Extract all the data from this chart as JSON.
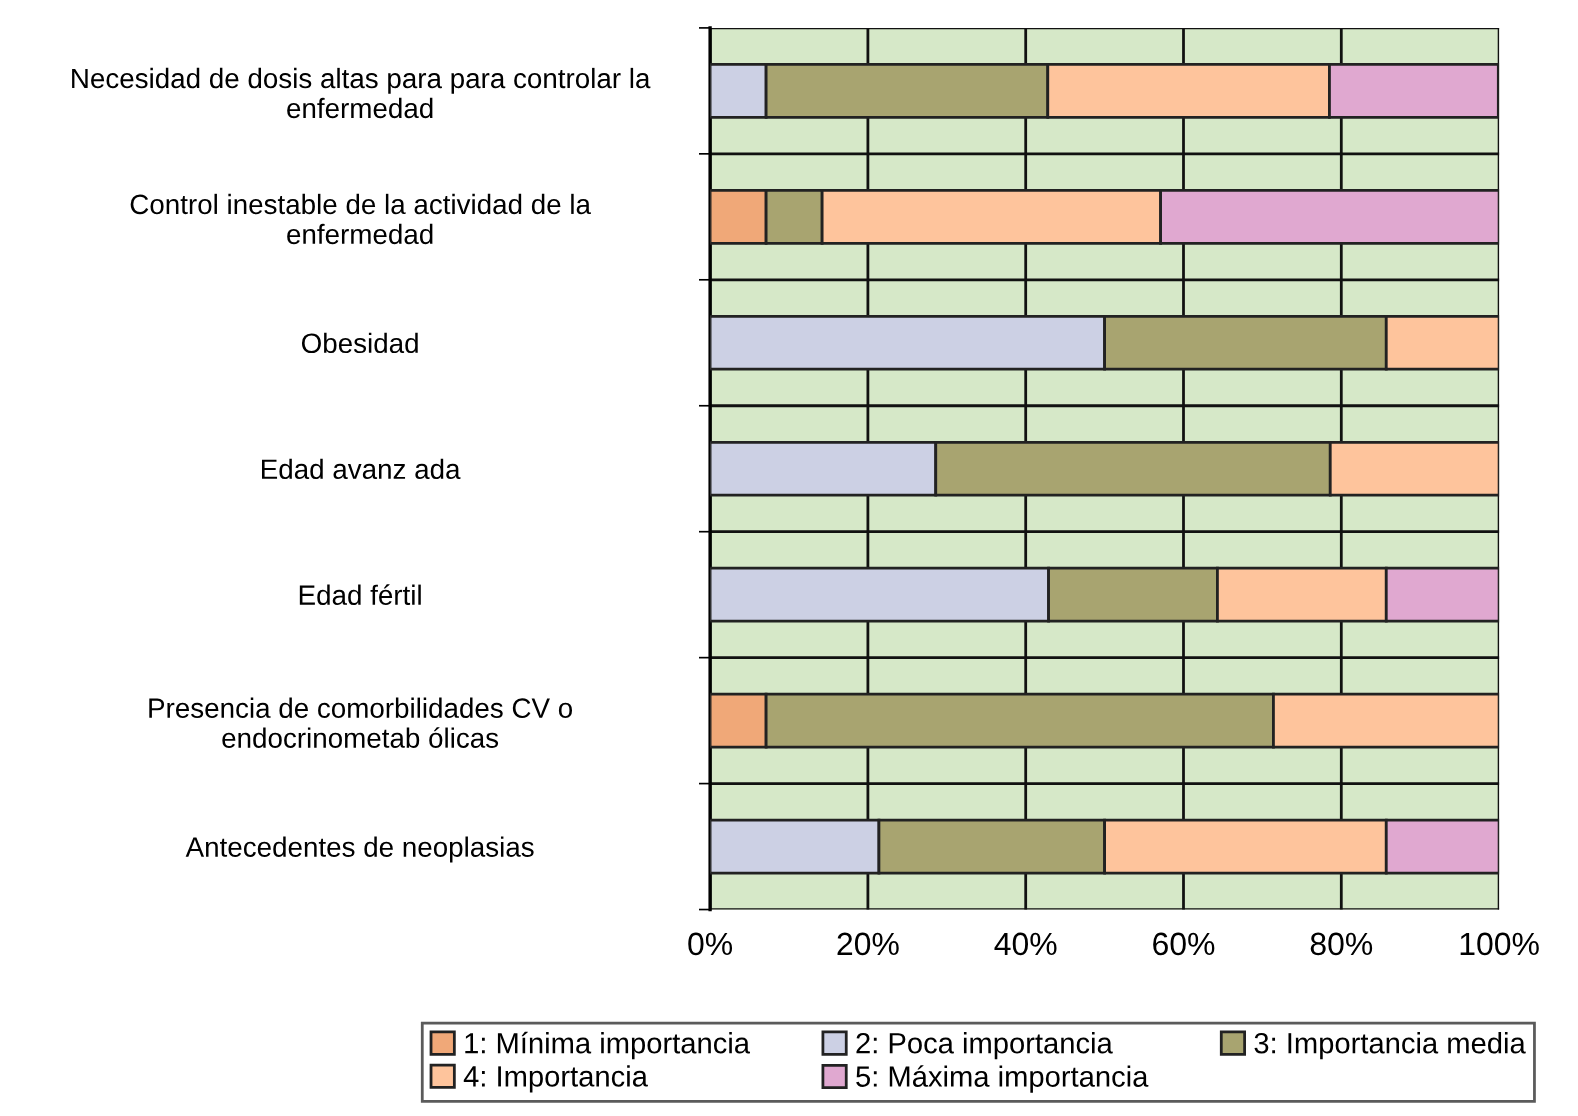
{
  "chart_data": {
    "type": "bar",
    "orientation": "horizontal",
    "stacked": true,
    "categories": [
      "Necesidad de dosis altas para para controlar la\nenfermedad",
      "Control inestable de la actividad de la\nenfermedad",
      "Obesidad",
      "Edad avanz ada",
      "Edad fértil",
      "Presencia de comorbilidades CV o\nendocrinometab ólicas",
      "Antecedentes de neoplasias"
    ],
    "series": [
      {
        "name": "1: Mínima importancia",
        "color": "#f0a878",
        "values": [
          0,
          7.1,
          0,
          0,
          0,
          7.1,
          0
        ]
      },
      {
        "name": "2: Poca importancia",
        "color": "#ccd0e4",
        "values": [
          7.1,
          0,
          50.0,
          28.6,
          42.9,
          0,
          21.4
        ]
      },
      {
        "name": "3: Importancia media",
        "color": "#a8a470",
        "values": [
          35.7,
          7.1,
          35.7,
          50.0,
          21.4,
          64.3,
          28.6
        ]
      },
      {
        "name": "4: Importancia",
        "color": "#fec49c",
        "values": [
          35.7,
          42.9,
          14.3,
          21.4,
          21.4,
          28.6,
          35.7
        ]
      },
      {
        "name": "5: Máxima importancia",
        "color": "#e0a8d0",
        "values": [
          21.4,
          42.9,
          0,
          0,
          14.3,
          0,
          14.3
        ]
      }
    ],
    "xlim": [
      0,
      100
    ],
    "xticks": [
      {
        "value": 0,
        "label": "0%"
      },
      {
        "value": 20,
        "label": "20%"
      },
      {
        "value": 40,
        "label": "40%"
      },
      {
        "value": 60,
        "label": "60%"
      },
      {
        "value": 80,
        "label": "80%"
      },
      {
        "value": 100,
        "label": "100%"
      }
    ],
    "grid": true,
    "legend": "bottom"
  }
}
